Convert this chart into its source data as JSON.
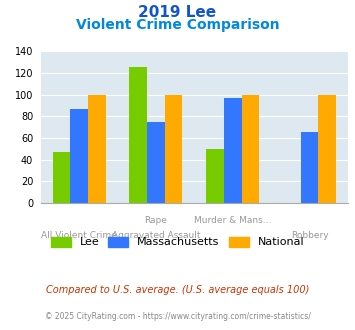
{
  "title_line1": "2019 Lee",
  "title_line2": "Violent Crime Comparison",
  "groups": [
    {
      "label_top": "",
      "label_bot": "All Violent Crime",
      "lee": 47,
      "mass": 87,
      "national": 100
    },
    {
      "label_top": "Rape",
      "label_bot": "Aggravated Assault",
      "lee": 125,
      "mass": 75,
      "national": 100
    },
    {
      "label_top": "Murder & Mans...",
      "label_bot": "",
      "lee": 50,
      "mass": 97,
      "national": 100
    },
    {
      "label_top": "",
      "label_bot": "Robbery",
      "lee": 0,
      "mass": 65,
      "national": 100
    }
  ],
  "bar_colors": {
    "lee": "#77cc00",
    "mass": "#3377ff",
    "national": "#ffaa00"
  },
  "ylim": [
    0,
    140
  ],
  "yticks": [
    0,
    20,
    40,
    60,
    80,
    100,
    120,
    140
  ],
  "plot_bg": "#dde8f0",
  "title_color1": "#1155cc",
  "title_color2": "#0088dd",
  "xlabel_color": "#999999",
  "footnote1": "Compared to U.S. average. (U.S. average equals 100)",
  "footnote2": "© 2025 CityRating.com - https://www.cityrating.com/crime-statistics/",
  "footnote1_color": "#cc3300",
  "footnote2_color": "#888888"
}
